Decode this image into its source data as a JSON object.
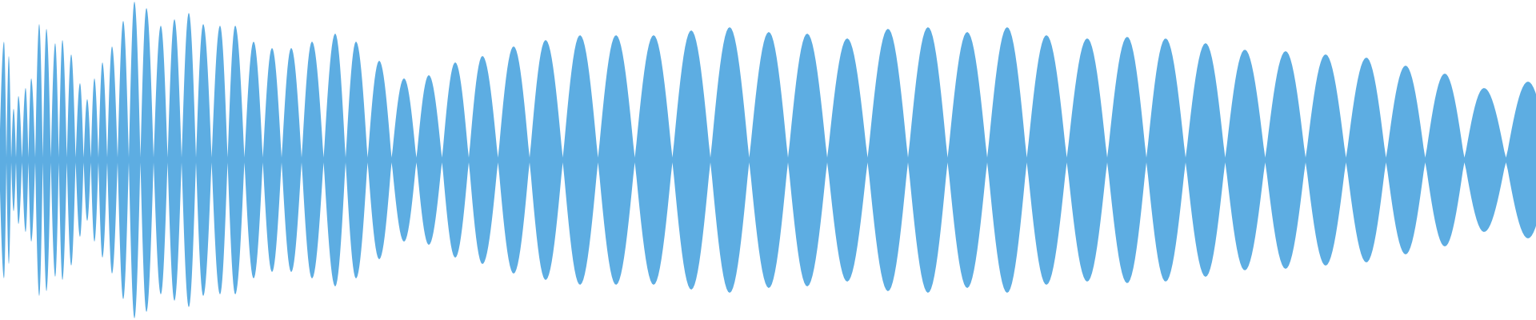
{
  "chart_data": {
    "type": "area",
    "title": "",
    "xlabel": "",
    "ylabel": "",
    "grid": false,
    "legend": "none",
    "symmetric_about_zero": true,
    "ylim": [
      -1,
      1
    ],
    "color": "#5dade2",
    "background": "#ffffff",
    "lobe_peak_amplitudes": [
      0.74,
      0.65,
      0.32,
      0.4,
      0.45,
      0.51,
      0.85,
      0.82,
      0.73,
      0.75,
      0.66,
      0.48,
      0.38,
      0.51,
      0.61,
      0.71,
      0.87,
      0.99,
      0.95,
      0.84,
      0.88,
      0.92,
      0.85,
      0.84,
      0.84,
      0.74,
      0.7,
      0.7,
      0.74,
      0.79,
      0.74,
      0.62,
      0.51,
      0.53,
      0.61,
      0.65,
      0.71,
      0.75,
      0.78,
      0.78,
      0.78,
      0.81,
      0.83,
      0.8,
      0.79,
      0.76,
      0.82,
      0.83,
      0.8,
      0.83,
      0.78,
      0.76,
      0.77,
      0.76,
      0.73,
      0.69,
      0.68,
      0.66,
      0.64,
      0.59,
      0.54,
      0.45,
      0.49
    ]
  }
}
